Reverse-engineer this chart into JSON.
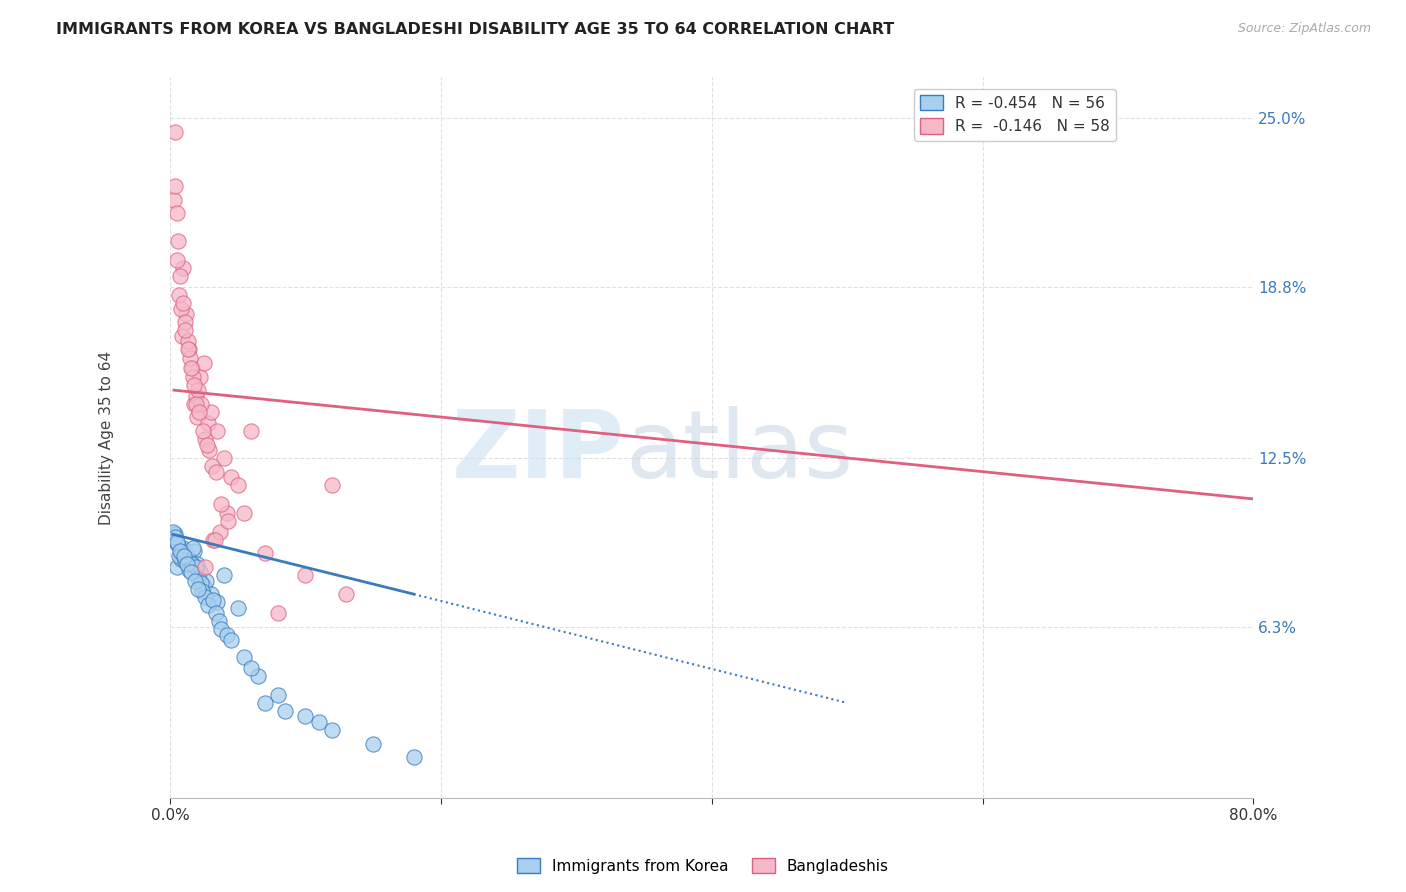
{
  "title": "IMMIGRANTS FROM KOREA VS BANGLADESHI DISABILITY AGE 35 TO 64 CORRELATION CHART",
  "source": "Source: ZipAtlas.com",
  "ylabel": "Disability Age 35 to 64",
  "legend_korea": "Immigrants from Korea",
  "legend_bangladeshi": "Bangladeshis",
  "R_korea": "-0.454",
  "N_korea": "56",
  "R_bangladeshi": "-0.146",
  "N_bangladeshi": "58",
  "color_korea": "#a8d0ee",
  "color_bangladeshi": "#f5b8c8",
  "line_color_korea": "#3a7abf",
  "line_color_bangladeshi": "#e06080",
  "watermark_zip": "ZIP",
  "watermark_atlas": "atlas",
  "korea_x": [
    0.5,
    0.8,
    1.0,
    1.2,
    1.5,
    1.8,
    2.0,
    2.2,
    2.5,
    2.7,
    3.0,
    3.5,
    4.0,
    5.0,
    6.5,
    8.0,
    0.3,
    0.4,
    0.6,
    0.7,
    0.9,
    1.1,
    1.3,
    1.4,
    1.6,
    1.7,
    1.9,
    2.1,
    2.3,
    2.4,
    2.6,
    2.8,
    3.2,
    3.4,
    3.6,
    3.8,
    4.2,
    4.5,
    5.5,
    6.0,
    7.0,
    8.5,
    10.0,
    11.0,
    12.0,
    15.0,
    18.0,
    0.2,
    0.35,
    0.55,
    0.75,
    1.05,
    1.25,
    1.55,
    1.85,
    2.05
  ],
  "korea_y": [
    8.5,
    8.8,
    9.2,
    9.0,
    8.7,
    9.1,
    8.6,
    8.3,
    7.8,
    8.0,
    7.5,
    7.2,
    8.2,
    7.0,
    4.5,
    3.8,
    9.5,
    9.7,
    9.3,
    8.9,
    9.0,
    8.7,
    8.8,
    8.4,
    8.6,
    9.2,
    8.5,
    8.1,
    7.9,
    7.6,
    7.4,
    7.1,
    7.3,
    6.8,
    6.5,
    6.2,
    6.0,
    5.8,
    5.2,
    4.8,
    3.5,
    3.2,
    3.0,
    2.8,
    2.5,
    2.0,
    1.5,
    9.8,
    9.6,
    9.4,
    9.1,
    8.9,
    8.6,
    8.3,
    8.0,
    7.7
  ],
  "bangladeshi_x": [
    0.3,
    0.5,
    0.7,
    0.9,
    1.0,
    1.2,
    1.4,
    1.6,
    1.8,
    2.0,
    2.2,
    2.5,
    2.8,
    3.0,
    3.5,
    4.0,
    4.5,
    5.0,
    6.0,
    8.0,
    12.0,
    0.4,
    0.6,
    0.8,
    1.1,
    1.3,
    1.5,
    1.7,
    1.9,
    2.1,
    2.3,
    2.6,
    2.9,
    3.2,
    3.7,
    4.2,
    0.35,
    0.55,
    0.75,
    0.95,
    1.15,
    1.35,
    1.55,
    1.75,
    1.95,
    2.15,
    2.45,
    2.75,
    3.1,
    3.4,
    3.8,
    4.3,
    5.5,
    7.0,
    10.0,
    13.0,
    2.6,
    3.3
  ],
  "bangladeshi_y": [
    22.0,
    21.5,
    18.5,
    17.0,
    19.5,
    17.8,
    16.5,
    15.8,
    14.5,
    14.0,
    15.5,
    16.0,
    13.8,
    14.2,
    13.5,
    12.5,
    11.8,
    11.5,
    13.5,
    6.8,
    11.5,
    24.5,
    20.5,
    18.0,
    17.5,
    16.8,
    16.2,
    15.5,
    14.8,
    15.0,
    14.5,
    13.2,
    12.8,
    9.5,
    9.8,
    10.5,
    22.5,
    19.8,
    19.2,
    18.2,
    17.2,
    16.5,
    15.8,
    15.2,
    14.5,
    14.2,
    13.5,
    13.0,
    12.2,
    12.0,
    10.8,
    10.2,
    10.5,
    9.0,
    8.2,
    7.5,
    8.5,
    9.5
  ],
  "xmin": 0,
  "xmax": 80,
  "ymin": 0,
  "ymax": 26.5,
  "yticks": [
    6.3,
    12.5,
    18.8,
    25.0
  ],
  "background_color": "#ffffff",
  "grid_color": "#dddddd",
  "korea_line_start_x": 0.2,
  "korea_line_end_x": 18.0,
  "korea_line_start_y": 9.7,
  "korea_line_end_y": 7.5,
  "korea_dash_start_x": 18.0,
  "korea_dash_end_x": 50.0,
  "korea_dash_start_y": 7.5,
  "korea_dash_end_y": 3.5,
  "bang_line_start_x": 0.3,
  "bang_line_end_x": 80.0,
  "bang_line_start_y": 15.0,
  "bang_line_end_y": 11.0
}
